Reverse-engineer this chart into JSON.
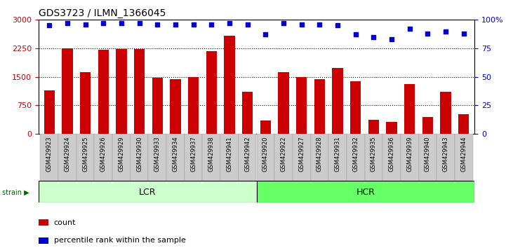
{
  "title": "GDS3723 / ILMN_1366045",
  "categories": [
    "GSM429923",
    "GSM429924",
    "GSM429925",
    "GSM429926",
    "GSM429929",
    "GSM429930",
    "GSM429933",
    "GSM429934",
    "GSM429937",
    "GSM429938",
    "GSM429941",
    "GSM429942",
    "GSM429920",
    "GSM429922",
    "GSM429927",
    "GSM429928",
    "GSM429931",
    "GSM429932",
    "GSM429935",
    "GSM429936",
    "GSM429939",
    "GSM429940",
    "GSM429943",
    "GSM429944"
  ],
  "counts": [
    1150,
    2250,
    1620,
    2220,
    2230,
    2230,
    1480,
    1440,
    1500,
    2180,
    2580,
    1100,
    350,
    1620,
    1500,
    1440,
    1730,
    1380,
    380,
    310,
    1320,
    440,
    1100,
    520
  ],
  "percentile_ranks": [
    95,
    97,
    96,
    97,
    97,
    97,
    96,
    96,
    96,
    96,
    97,
    96,
    87,
    97,
    96,
    96,
    95,
    87,
    85,
    83,
    92,
    88,
    90,
    88
  ],
  "lcr_count": 12,
  "hcr_count": 12,
  "bar_color": "#cc0000",
  "dot_color": "#0000cc",
  "lcr_color": "#ccffcc",
  "hcr_color": "#66ff66",
  "strain_label_color": "#006600",
  "ylim_left": [
    0,
    3000
  ],
  "ylim_right": [
    0,
    100
  ],
  "yticks_left": [
    0,
    750,
    1500,
    2250,
    3000
  ],
  "yticks_right": [
    0,
    25,
    50,
    75,
    100
  ],
  "tick_bg_color": "#cccccc",
  "legend_count_label": "count",
  "legend_pct_label": "percentile rank within the sample"
}
